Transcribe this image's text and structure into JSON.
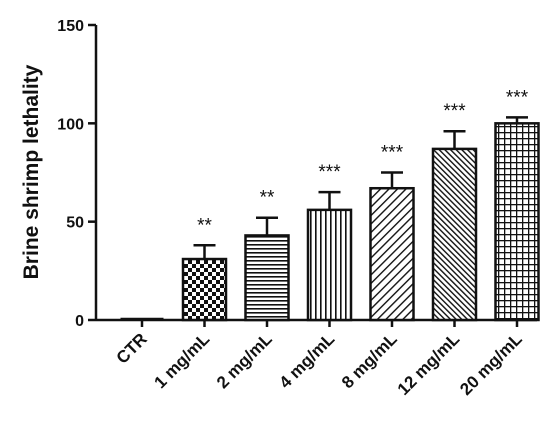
{
  "chart_data": {
    "type": "bar",
    "categories": [
      "CTR",
      "1 mg/mL",
      "2 mg/mL",
      "4 mg/mL",
      "8 mg/mL",
      "12 mg/mL",
      "20 mg/mL"
    ],
    "values": [
      0,
      31,
      43,
      56,
      67,
      87,
      100
    ],
    "errors": [
      0,
      7,
      9,
      9,
      8,
      9,
      3
    ],
    "significance": [
      "",
      "**",
      "**",
      "***",
      "***",
      "***",
      "***"
    ],
    "patterns": [
      "none",
      "checker",
      "horizontal-lines",
      "vertical-lines",
      "diagonal-fine",
      "diagonal-dense",
      "grid"
    ],
    "title": "",
    "xlabel": "",
    "ylabel": "Brine shrimp lethality",
    "ylim": [
      0,
      150
    ],
    "yticks": [
      0,
      50,
      100,
      150
    ],
    "grid": false,
    "legend": "none",
    "colors": {
      "ink": "#111111",
      "fill": "#ffffff"
    }
  }
}
